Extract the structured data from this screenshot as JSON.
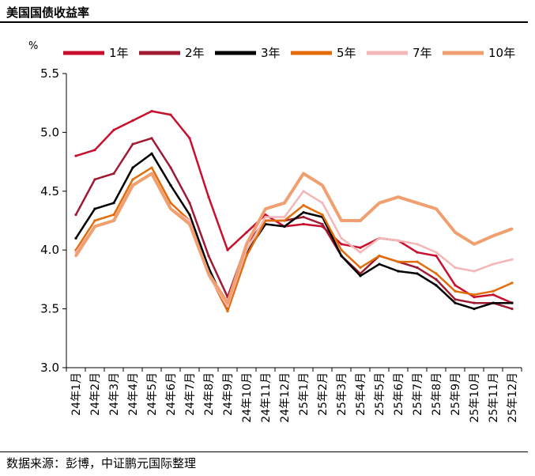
{
  "page": {
    "title": "美国国债收益率",
    "source": "数据来源：彭博，中证鹏元国际整理"
  },
  "chart_data": {
    "type": "line",
    "title": "美国国债收益率",
    "unit_label": "%",
    "ylim": [
      3.0,
      5.5
    ],
    "yticks": [
      3.0,
      3.5,
      4.0,
      4.5,
      5.0,
      5.5
    ],
    "ytick_labels": [
      "3.0",
      "3.5",
      "4.0",
      "4.5",
      "5.0",
      "5.5"
    ],
    "x_labels": [
      "24年1月",
      "24年2月",
      "24年3月",
      "24年4月",
      "24年5月",
      "24年6月",
      "24年7月",
      "24年8月",
      "24年9月",
      "24年10月",
      "24年11月",
      "24年12月",
      "25年1月",
      "25年2月",
      "25年3月",
      "25年4月",
      "25年5月",
      "25年6月",
      "25年7月",
      "25年8月",
      "25年9月",
      "25年10月",
      "25年11月",
      "25年12月"
    ],
    "x": [
      "24-01",
      "24-02",
      "24-03",
      "24-04",
      "24-05",
      "24-06",
      "24-07",
      "24-08",
      "24-09",
      "24-10",
      "24-11",
      "24-12",
      "25-01",
      "25-02",
      "25-03",
      "25-04",
      "25-05",
      "25-06",
      "25-07",
      "25-08",
      "25-09",
      "25-10",
      "25-11",
      "25-12"
    ],
    "legend_position": "top",
    "grid": false,
    "series": [
      {
        "name": "1年",
        "color": "#c8102e",
        "values": [
          4.8,
          4.85,
          5.02,
          5.1,
          5.18,
          5.15,
          4.95,
          4.45,
          4.0,
          4.15,
          4.3,
          4.2,
          4.22,
          4.2,
          4.05,
          4.02,
          4.1,
          4.08,
          3.98,
          3.95,
          3.7,
          3.6,
          3.62,
          3.55
        ]
      },
      {
        "name": "2年",
        "color": "#9e1b32",
        "values": [
          4.3,
          4.6,
          4.65,
          4.9,
          4.95,
          4.7,
          4.4,
          3.95,
          3.6,
          4.05,
          4.25,
          4.25,
          4.28,
          4.22,
          3.95,
          3.8,
          3.95,
          3.9,
          3.85,
          3.75,
          3.58,
          3.55,
          3.55,
          3.5
        ]
      },
      {
        "name": "3年",
        "color": "#000000",
        "values": [
          4.1,
          4.35,
          4.4,
          4.7,
          4.82,
          4.55,
          4.3,
          3.85,
          3.5,
          3.98,
          4.22,
          4.2,
          4.32,
          4.28,
          3.95,
          3.78,
          3.88,
          3.82,
          3.8,
          3.7,
          3.55,
          3.5,
          3.55,
          3.55
        ]
      },
      {
        "name": "5年",
        "color": "#e36c0a",
        "values": [
          4.0,
          4.25,
          4.3,
          4.6,
          4.7,
          4.4,
          4.25,
          3.8,
          3.48,
          3.95,
          4.25,
          4.25,
          4.38,
          4.3,
          4.0,
          3.85,
          3.95,
          3.9,
          3.9,
          3.8,
          3.65,
          3.62,
          3.65,
          3.72
        ]
      },
      {
        "name": "7年",
        "color": "#f4b6b6",
        "values": [
          3.98,
          4.2,
          4.25,
          4.55,
          4.65,
          4.35,
          4.25,
          3.78,
          3.52,
          4.0,
          4.28,
          4.28,
          4.5,
          4.4,
          4.1,
          3.98,
          4.1,
          4.08,
          4.05,
          3.98,
          3.85,
          3.82,
          3.88,
          3.92
        ]
      },
      {
        "name": "10年",
        "color": "#f0a070",
        "values": [
          3.95,
          4.2,
          4.25,
          4.55,
          4.65,
          4.35,
          4.22,
          3.8,
          3.55,
          4.05,
          4.35,
          4.4,
          4.65,
          4.55,
          4.25,
          4.25,
          4.4,
          4.45,
          4.4,
          4.35,
          4.15,
          4.05,
          4.12,
          4.18
        ]
      }
    ]
  }
}
